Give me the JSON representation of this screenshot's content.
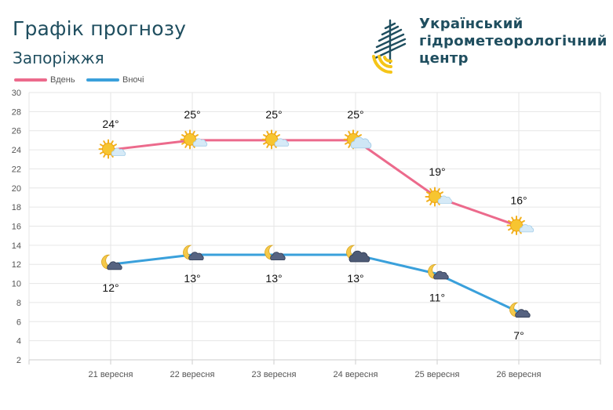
{
  "header": {
    "title": "Графік прогнозу",
    "city": "Запоріжжя",
    "org_name_lines": [
      "Український",
      "гідрометеорологічний",
      "центр"
    ]
  },
  "colors": {
    "day": "#ec6a8c",
    "night": "#3aa0db",
    "text_dark": "#1f4e5f",
    "grid": "#e6e6e6"
  },
  "chart_data": {
    "type": "line",
    "categories": [
      "21 вересня",
      "22 вересня",
      "23 вересня",
      "24 вересня",
      "25 вересня",
      "26 вересня"
    ],
    "series": [
      {
        "name": "Вдень",
        "values": [
          24,
          25,
          25,
          25,
          19,
          16
        ],
        "labels": [
          "24°",
          "25°",
          "25°",
          "25°",
          "19°",
          "16°"
        ],
        "icons": [
          "sun-cloud-icon",
          "sun-cloud-icon",
          "sun-cloud-icon",
          "sun-clouds-icon",
          "sun-cloud-icon",
          "sun-cloud-icon"
        ]
      },
      {
        "name": "Вночі",
        "values": [
          12,
          13,
          13,
          13,
          11,
          7
        ],
        "labels": [
          "12°",
          "13°",
          "13°",
          "13°",
          "11°",
          "7°"
        ],
        "icons": [
          "moon-cloud-icon",
          "moon-cloud-icon",
          "moon-cloud-icon",
          "moon-clouds-icon",
          "moon-cloud-icon",
          "moon-cloud-icon"
        ]
      }
    ],
    "yticks": [
      "2",
      "4",
      "6",
      "8",
      "10",
      "12",
      "14",
      "16",
      "18",
      "20",
      "22",
      "24",
      "26",
      "28",
      "30"
    ],
    "ylim": [
      2,
      30
    ],
    "grid": true,
    "legend": "top-left"
  }
}
